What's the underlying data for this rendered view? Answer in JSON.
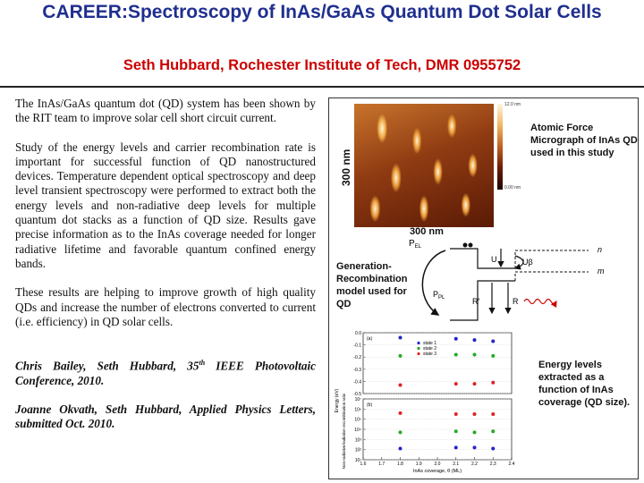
{
  "slide": {
    "title": "CAREER:Spectroscopy of InAs/GaAs Quantum Dot Solar Cells",
    "subtitle": "Seth Hubbard, Rochester Institute of Tech, DMR 0955752",
    "paragraphs": [
      "The InAs/GaAs quantum dot (QD) system has been shown by the RIT team to improve solar cell short circuit current.",
      "Study of the energy levels and carrier recombination rate is important for successful function of QD nanostructured devices. Temperature dependent optical spectroscopy and deep level transient spectroscopy were performed to extract both the energy levels and non-radiative deep levels for multiple quantum dot stacks as a function of QD size. Results gave precise information as to the InAs coverage needed for longer radiative lifetime and  favorable quantum confined energy bands.",
      "These results are helping to improve growth of high quality QDs and increase the number of electrons converted to current (i.e. efficiency) in QD solar cells."
    ],
    "citation1_a": "Chris Bailey, Seth Hubbard, 35",
    "citation1_sup": "th",
    "citation1_b": " IEEE Photovoltaic Conference, 2010.",
    "citation2": "Joanne Okvath, Seth Hubbard, Applied Physics Letters, submitted Oct. 2010."
  },
  "figures": {
    "afm": {
      "scale_vertical": "300 nm",
      "scale_horizontal": "300 nm",
      "colorbar_top": "12.0 nm",
      "colorbar_bottom": "0.00 nm",
      "caption": "Atomic Force Micrograph of InAs QD used in this study"
    },
    "model": {
      "caption": "Generation-Recombination model used for QD",
      "labels": {
        "pel": "P",
        "pel_sub": "EL",
        "ppl": "P",
        "ppl_sub": "PL",
        "u": "U",
        "ubeta": "Uβ",
        "rprime": "R′",
        "r": "R",
        "n": "n",
        "m": "m"
      }
    },
    "energy_caption": "Energy levels extracted as a function of InAs coverage (QD size)."
  },
  "chart_data": {
    "type": "scatter",
    "x_categories": [
      1.8,
      2.1,
      2.2,
      2.3
    ],
    "xlim": [
      1.6,
      2.4
    ],
    "xticks": [
      "1.6",
      "1.7",
      "1.8",
      "1.9",
      "2.0",
      "2.1",
      "2.2",
      "2.3",
      "2.4"
    ],
    "xlabel": "InAs coverage, θ (ML)",
    "panels": [
      {
        "label": "(a)",
        "ylabel": "Energy (eV)",
        "ylim": [
          -0.5,
          0.0
        ],
        "yticks": [
          "0.0",
          "-0.1",
          "-0.2",
          "-0.3",
          "-0.4",
          "-0.5"
        ],
        "legend": [
          "state 1",
          "state 2",
          "state 3"
        ],
        "series": [
          {
            "name": "state 1",
            "color": "#2222cc",
            "x": [
              1.8,
              2.1,
              2.2,
              2.3
            ],
            "y": [
              -0.04,
              -0.05,
              -0.06,
              -0.07
            ]
          },
          {
            "name": "state 2",
            "color": "#22aa22",
            "x": [
              1.8,
              2.1,
              2.2,
              2.3
            ],
            "y": [
              -0.19,
              -0.18,
              -0.18,
              -0.19
            ]
          },
          {
            "name": "state 3",
            "color": "#dd2222",
            "x": [
              1.8,
              2.1,
              2.2,
              2.3
            ],
            "y": [
              -0.43,
              -0.42,
              -0.42,
              -0.41
            ]
          }
        ]
      },
      {
        "label": "(b)",
        "ylabel": "Non-radiative/radiative recombination ratio",
        "ylim": [
          1,
          7
        ],
        "yticks": [
          "10⁷",
          "10⁶",
          "10⁵",
          "10⁴",
          "10³",
          "10²",
          "10¹"
        ],
        "series": [
          {
            "name": "",
            "color": "#2222cc",
            "x": [
              1.8,
              2.1,
              2.2,
              2.3
            ],
            "y": [
              2.1,
              2.2,
              2.2,
              2.1
            ]
          },
          {
            "name": "",
            "color": "#22aa22",
            "x": [
              1.8,
              2.1,
              2.2,
              2.3
            ],
            "y": [
              3.7,
              3.8,
              3.7,
              3.8
            ]
          },
          {
            "name": "",
            "color": "#dd2222",
            "x": [
              1.8,
              2.1,
              2.2,
              2.3
            ],
            "y": [
              5.6,
              5.5,
              5.5,
              5.5
            ]
          }
        ]
      }
    ]
  }
}
